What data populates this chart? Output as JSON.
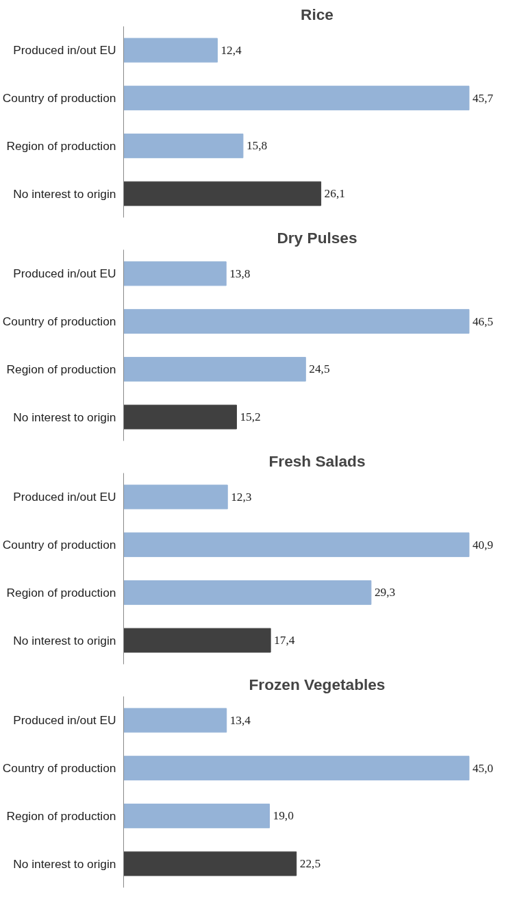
{
  "chart_data": [
    {
      "type": "bar",
      "orientation": "horizontal",
      "title": "Rice",
      "categories": [
        "Produced in/out EU",
        "Country of production",
        "Region of production",
        "No interest to origin"
      ],
      "values": [
        12.4,
        45.7,
        15.8,
        26.1
      ],
      "colors": [
        "#95b3d7",
        "#95b3d7",
        "#95b3d7",
        "#404040"
      ],
      "value_labels": [
        "12,4",
        "45,7",
        "15,8",
        "26,1"
      ]
    },
    {
      "type": "bar",
      "orientation": "horizontal",
      "title": "Dry Pulses",
      "categories": [
        "Produced in/out EU",
        "Country of production",
        "Region of production",
        "No interest to origin"
      ],
      "values": [
        13.8,
        46.5,
        24.5,
        15.2
      ],
      "colors": [
        "#95b3d7",
        "#95b3d7",
        "#95b3d7",
        "#404040"
      ],
      "value_labels": [
        "13,8",
        "46,5",
        "24,5",
        "15,2"
      ]
    },
    {
      "type": "bar",
      "orientation": "horizontal",
      "title": "Fresh Salads",
      "categories": [
        "Produced in/out EU",
        "Country of production",
        "Region of production",
        "No interest to origin"
      ],
      "values": [
        12.3,
        40.9,
        29.3,
        17.4
      ],
      "colors": [
        "#95b3d7",
        "#95b3d7",
        "#95b3d7",
        "#404040"
      ],
      "value_labels": [
        "12,3",
        "40,9",
        "29,3",
        "17,4"
      ]
    },
    {
      "type": "bar",
      "orientation": "horizontal",
      "title": "Frozen Vegetables",
      "categories": [
        "Produced in/out EU",
        "Country of production",
        "Region of production",
        "No interest to origin"
      ],
      "values": [
        13.4,
        45.0,
        19.0,
        22.5
      ],
      "colors": [
        "#95b3d7",
        "#95b3d7",
        "#95b3d7",
        "#404040"
      ],
      "value_labels": [
        "13,4",
        "45,0",
        "19,0",
        "22,5"
      ]
    }
  ]
}
